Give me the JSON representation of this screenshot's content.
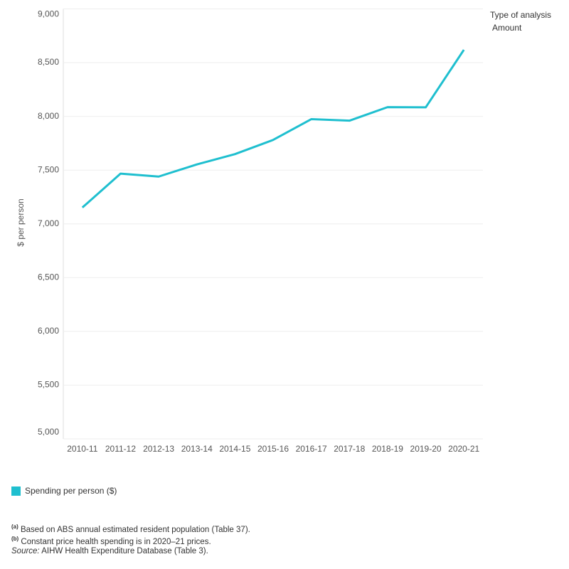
{
  "chart_data": {
    "type": "line",
    "y_label": "$ per person",
    "categories": [
      "2010-11",
      "2011-12",
      "2012-13",
      "2013-14",
      "2014-15",
      "2015-16",
      "2016-17",
      "2017-18",
      "2018-19",
      "2019-20",
      "2020-21"
    ],
    "series": [
      {
        "name": "Spending per person ($)",
        "color": "#1fbfcf",
        "values": [
          7152,
          7467,
          7440,
          7553,
          7649,
          7781,
          7974,
          7960,
          8086,
          8084,
          8619
        ]
      }
    ],
    "ylim": [
      5000,
      9000
    ],
    "yticks": [
      {
        "value": 5000,
        "label": "5,000"
      },
      {
        "value": 5500,
        "label": "5,500"
      },
      {
        "value": 6000,
        "label": "6,000"
      },
      {
        "value": 6500,
        "label": "6,500"
      },
      {
        "value": 7000,
        "label": "7,000"
      },
      {
        "value": 7500,
        "label": "7,500"
      },
      {
        "value": 8000,
        "label": "8,000"
      },
      {
        "value": 8500,
        "label": "8,500"
      },
      {
        "value": 9000,
        "label": "9,000"
      }
    ],
    "grid": true
  },
  "filter": {
    "title": "Type of analysis",
    "value": "Amount"
  },
  "notes": [
    {
      "marker": "(a)",
      "text": "Based on ABS annual estimated resident population (Table 37)."
    },
    {
      "marker": "(b)",
      "text": "Constant price health spending is in 2020–21 prices."
    }
  ],
  "source": {
    "label": "Source:",
    "text": "AIHW Health Expenditure Database (Table 3)."
  }
}
